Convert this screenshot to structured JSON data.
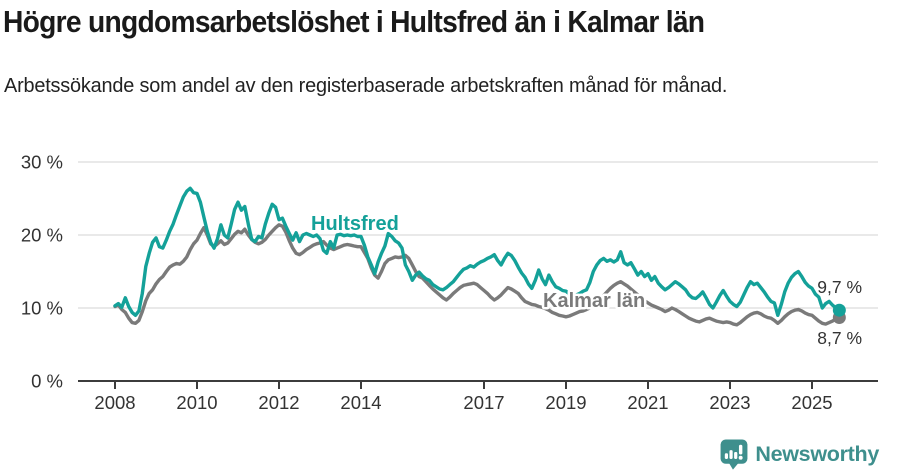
{
  "header": {
    "title": "Högre ungdomsarbetslöshet i Hultsfred än i Kalmar län",
    "subtitle": "Arbetssökande som andel av den registerbaserade arbetskraften månad för månad."
  },
  "footer": {
    "brand": "Newsworthy"
  },
  "colors": {
    "hultsfred": "#14a199",
    "kalmar": "#7a7a7a",
    "brand": "#3e8f8d",
    "axis_text": "#333333",
    "grid": "#dcdcdc",
    "axis_line": "#3c3c3c",
    "title_text": "#1a1a1a"
  },
  "chart_data": {
    "type": "line",
    "title": "Högre ungdomsarbetslöshet i Hultsfred än i Kalmar län",
    "subtitle": "Arbetssökande som andel av den registerbaserade arbetskraften månad för månad.",
    "x_unit": "month",
    "x_start": "2008-01",
    "x_end": "2025-09",
    "ylim": [
      0,
      30
    ],
    "grid": "horizontal-only",
    "legend": "inline-labels",
    "y_ticks": [
      {
        "value": 0,
        "label": "0 %"
      },
      {
        "value": 10,
        "label": "10 %"
      },
      {
        "value": 20,
        "label": "20 %"
      },
      {
        "value": 30,
        "label": "30 %"
      }
    ],
    "x_ticks": [
      {
        "year": 2008,
        "label": "2008"
      },
      {
        "year": 2010,
        "label": "2010"
      },
      {
        "year": 2012,
        "label": "2012"
      },
      {
        "year": 2014,
        "label": "2014"
      },
      {
        "year": 2017,
        "label": "2017"
      },
      {
        "year": 2019,
        "label": "2019"
      },
      {
        "year": 2021,
        "label": "2021"
      },
      {
        "year": 2023,
        "label": "2023"
      },
      {
        "year": 2025,
        "label": "2025"
      }
    ],
    "series": [
      {
        "name": "Hultsfred",
        "color_key": "hultsfred",
        "end_value": 9.7,
        "end_label": "9,7 %",
        "values": [
          10.3,
          10.6,
          10.1,
          11.4,
          10.2,
          9.4,
          9.0,
          9.6,
          12.0,
          15.7,
          17.5,
          19.0,
          19.6,
          18.4,
          18.2,
          19.3,
          20.5,
          21.5,
          22.8,
          24.0,
          25.2,
          26.0,
          26.4,
          25.8,
          25.7,
          24.5,
          22.5,
          20.5,
          19.0,
          18.2,
          19.5,
          21.4,
          20.0,
          19.6,
          21.5,
          23.5,
          24.5,
          23.4,
          23.9,
          21.5,
          19.4,
          19.1,
          19.8,
          19.6,
          21.5,
          23.0,
          24.2,
          23.8,
          22.1,
          22.3,
          21.2,
          20.2,
          19.3,
          20.3,
          19.1,
          20.0,
          20.2,
          20.0,
          19.8,
          20.0,
          19.5,
          17.9,
          17.5,
          19.1,
          18.2,
          20.0,
          20.1,
          19.9,
          20.0,
          19.9,
          20.0,
          19.8,
          19.8,
          18.6,
          17.0,
          15.9,
          14.7,
          16.3,
          17.5,
          18.5,
          20.2,
          19.8,
          19.2,
          18.9,
          18.2,
          15.9,
          15.0,
          13.8,
          14.5,
          14.9,
          14.4,
          14.0,
          13.8,
          13.2,
          12.9,
          12.6,
          12.5,
          12.8,
          13.2,
          13.6,
          14.2,
          14.8,
          15.3,
          15.5,
          15.8,
          15.6,
          16.0,
          16.3,
          16.5,
          16.8,
          17.0,
          17.3,
          16.5,
          15.9,
          16.8,
          17.5,
          17.2,
          16.5,
          15.6,
          14.8,
          14.2,
          13.3,
          12.7,
          13.8,
          15.2,
          14.0,
          13.2,
          14.5,
          13.6,
          12.9,
          12.7,
          12.4,
          12.3,
          11.9,
          11.6,
          11.8,
          12.0,
          12.3,
          12.5,
          13.5,
          15.0,
          15.9,
          16.5,
          16.8,
          16.4,
          16.6,
          16.3,
          16.6,
          17.7,
          16.2,
          15.9,
          16.2,
          15.4,
          14.5,
          15.0,
          14.3,
          14.7,
          13.8,
          14.3,
          13.4,
          12.9,
          12.5,
          12.8,
          13.2,
          13.6,
          13.3,
          12.9,
          12.5,
          11.8,
          11.4,
          11.3,
          11.7,
          12.2,
          11.4,
          10.5,
          10.0,
          10.8,
          11.7,
          12.4,
          11.6,
          10.9,
          10.5,
          10.2,
          10.8,
          11.8,
          12.8,
          13.6,
          13.2,
          13.4,
          12.8,
          12.2,
          11.5,
          10.9,
          10.7,
          9.0,
          10.5,
          12.2,
          13.4,
          14.2,
          14.7,
          15.0,
          14.3,
          13.5,
          13.0,
          12.7,
          11.9,
          11.5,
          10.0,
          10.6,
          10.9,
          10.4,
          10.0,
          9.7
        ]
      },
      {
        "name": "Kalmar län",
        "color_key": "kalmar",
        "end_value": 8.7,
        "end_label": "8,7 %",
        "values": [
          10.2,
          10.4,
          9.8,
          9.4,
          8.6,
          8.0,
          7.9,
          8.3,
          9.5,
          11.0,
          12.0,
          12.5,
          13.3,
          13.9,
          14.3,
          15.0,
          15.6,
          15.9,
          16.1,
          16.0,
          16.4,
          17.0,
          18.0,
          18.8,
          19.3,
          20.2,
          21.0,
          20.0,
          18.8,
          18.4,
          18.8,
          19.2,
          18.7,
          18.9,
          19.5,
          20.1,
          20.5,
          20.3,
          20.8,
          20.0,
          19.4,
          19.0,
          18.8,
          19.0,
          19.4,
          20.0,
          20.5,
          21.0,
          21.4,
          21.2,
          20.4,
          19.2,
          18.2,
          17.5,
          17.3,
          17.6,
          18.0,
          18.3,
          18.6,
          18.8,
          18.9,
          19.1,
          18.6,
          18.2,
          18.0,
          18.2,
          18.4,
          18.6,
          18.7,
          18.6,
          18.5,
          18.4,
          18.4,
          17.6,
          16.8,
          15.5,
          14.5,
          14.1,
          15.0,
          16.1,
          16.6,
          16.8,
          17.0,
          16.9,
          17.0,
          17.2,
          16.8,
          15.9,
          15.0,
          14.3,
          14.1,
          13.6,
          13.1,
          12.6,
          12.2,
          11.8,
          11.4,
          11.1,
          11.5,
          12.0,
          12.4,
          12.8,
          13.1,
          13.2,
          13.3,
          13.4,
          13.2,
          12.8,
          12.4,
          12.0,
          11.5,
          11.1,
          11.4,
          11.8,
          12.3,
          12.8,
          12.6,
          12.3,
          12.0,
          11.4,
          10.9,
          10.7,
          10.5,
          10.4,
          10.2,
          10.1,
          9.9,
          9.7,
          9.4,
          9.2,
          9.0,
          8.9,
          8.8,
          8.9,
          9.1,
          9.3,
          9.5,
          9.6,
          9.8,
          10.0,
          10.4,
          10.8,
          11.2,
          11.7,
          12.2,
          12.7,
          13.1,
          13.4,
          13.6,
          13.3,
          13.0,
          12.6,
          12.2,
          11.8,
          11.4,
          11.0,
          10.7,
          10.4,
          10.2,
          10.0,
          9.8,
          9.5,
          9.7,
          10.0,
          9.8,
          9.5,
          9.2,
          8.9,
          8.6,
          8.4,
          8.2,
          8.1,
          8.3,
          8.5,
          8.6,
          8.4,
          8.2,
          8.1,
          8.0,
          8.1,
          8.0,
          7.8,
          7.7,
          8.0,
          8.4,
          8.8,
          9.1,
          9.3,
          9.4,
          9.2,
          8.9,
          8.7,
          8.6,
          8.3,
          7.9,
          8.3,
          8.8,
          9.2,
          9.5,
          9.7,
          9.8,
          9.6,
          9.3,
          9.1,
          9.0,
          8.6,
          8.2,
          7.9,
          7.8,
          8.0,
          8.2,
          8.5,
          8.7
        ]
      }
    ]
  }
}
